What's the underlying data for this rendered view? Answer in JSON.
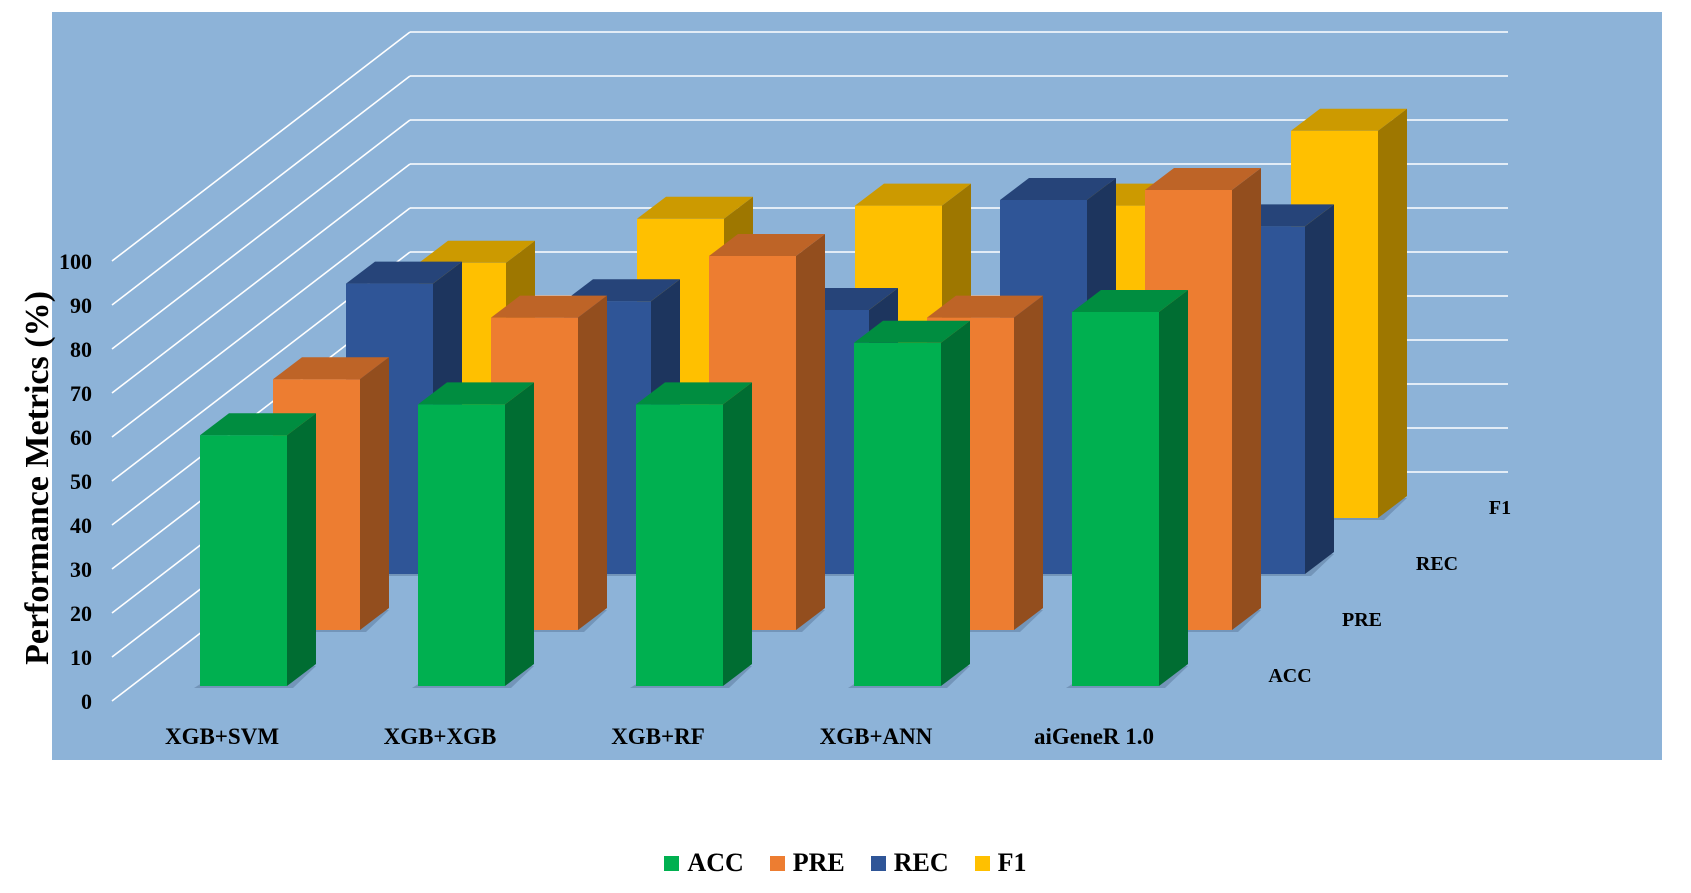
{
  "colors": {
    "background": "#ffffff",
    "plot_area": "#8db3d8",
    "grid": "#ffffff",
    "ACC": "#00b050",
    "PRE": "#ed7d31",
    "REC": "#2f5597",
    "F1": "#ffc000"
  },
  "chart_data": {
    "type": "bar",
    "style": "3d-column",
    "title": "",
    "xlabel": "",
    "ylabel": "Performance Metrics (%)",
    "ylim": [
      0,
      100
    ],
    "yticks": [
      "0",
      "10",
      "20",
      "30",
      "40",
      "50",
      "60",
      "70",
      "80",
      "90",
      "100"
    ],
    "grid": true,
    "legend_position": "bottom",
    "categories": [
      "XGB+SVM",
      "XGB+XGB",
      "XGB+RF",
      "XGB+ANN",
      "aiGeneR 1.0"
    ],
    "depth_labels": [
      "ACC",
      "PRE",
      "REC",
      "F1"
    ],
    "series": [
      {
        "name": "ACC",
        "values": [
          57,
          64,
          64,
          78,
          85
        ]
      },
      {
        "name": "PRE",
        "values": [
          57,
          71,
          85,
          71,
          100
        ]
      },
      {
        "name": "REC",
        "values": [
          66,
          62,
          60,
          85,
          79
        ]
      },
      {
        "name": "F1",
        "values": [
          58,
          68,
          71,
          71,
          88
        ]
      }
    ]
  },
  "legend": [
    {
      "label": "ACC",
      "color": "#00b050"
    },
    {
      "label": "PRE",
      "color": "#ed7d31"
    },
    {
      "label": "REC",
      "color": "#2f5597"
    },
    {
      "label": "F1",
      "color": "#ffc000"
    }
  ]
}
